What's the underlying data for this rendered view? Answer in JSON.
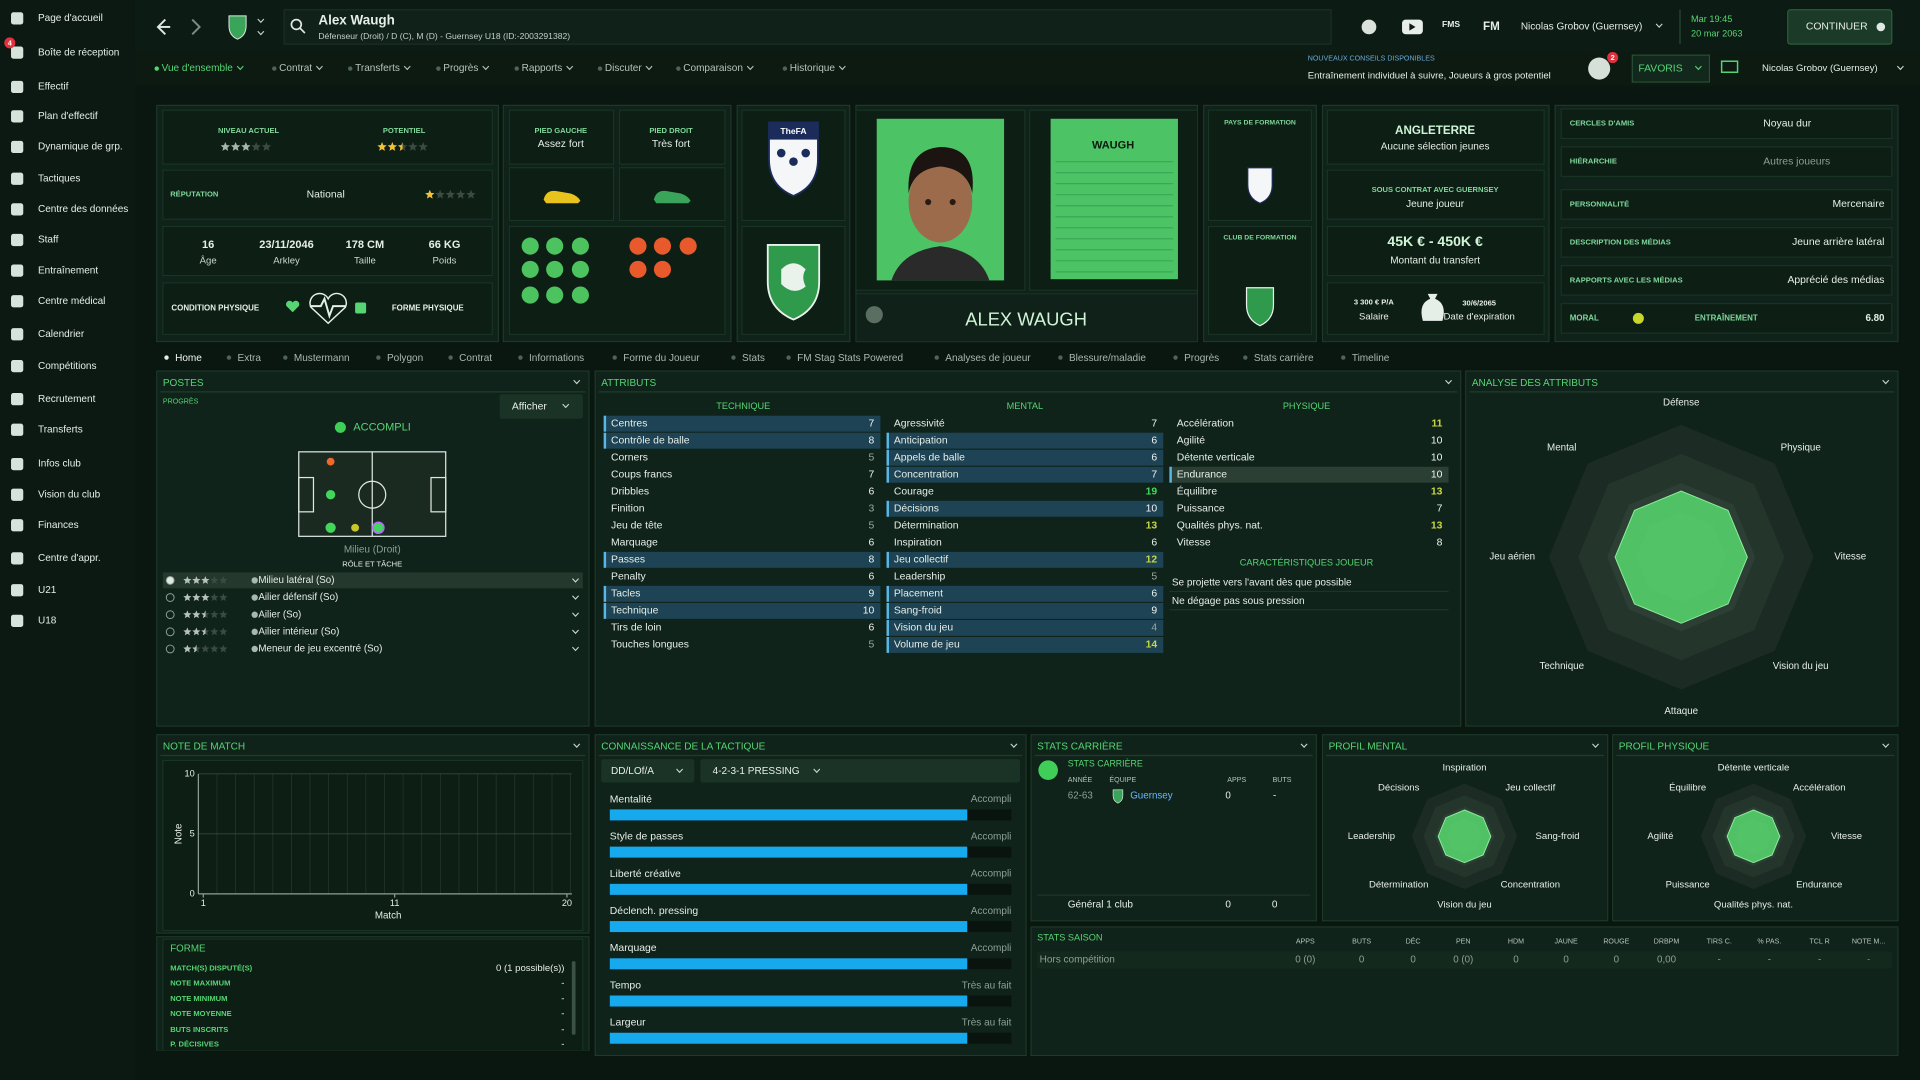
{
  "sidebar": {
    "badge": "4",
    "items": [
      "Page d'accueil",
      "Boîte de réception",
      "Effectif",
      "Plan d'effectif",
      "Dynamique de grp.",
      "Tactiques",
      "Centre des données",
      "Staff",
      "Entraînement",
      "Centre médical",
      "Calendrier",
      "Compétitions",
      "Recrutement",
      "Transferts",
      "Infos club",
      "Vision du club",
      "Finances",
      "Centre d'appr.",
      "U21",
      "U18"
    ]
  },
  "topbar": {
    "name": "Alex Waugh",
    "subtitle": "Défenseur (Droit) / D (C), M (D) - Guernsey U18 (ID:-2003291382)",
    "fms": "FMS",
    "fm": "FM",
    "manager": "Nicolas Grobov (Guernsey)",
    "time": "Mar 19:45",
    "date": "20 mar 2063",
    "continue": "CONTINUER"
  },
  "menu": [
    "Vue d'ensemble",
    "Contrat",
    "Transferts",
    "Progrès",
    "Rapports",
    "Discuter",
    "Comparaison",
    "Historique"
  ],
  "advice": {
    "title": "NOUVEAUX CONSEILS DISPONIBLES",
    "text": "Entraînement individuel à suivre, Joueurs à gros potentiel",
    "count": "2",
    "favorites": "FAVORIS",
    "manager": "Nicolas Grobov (Guernsey)"
  },
  "profile": {
    "current_ability": {
      "label": "NIVEAU ACTUEL",
      "stars": 3
    },
    "potential": {
      "label": "POTENTIEL",
      "stars": 2.5
    },
    "reputation": {
      "label": "RÉPUTATION",
      "value": "National",
      "stars": 1
    },
    "facts": [
      {
        "value": "16",
        "label": "Âge"
      },
      {
        "value": "23/11/2046",
        "label": "Arkley"
      },
      {
        "value": "178 CM",
        "label": "Taille"
      },
      {
        "value": "66 KG",
        "label": "Poids"
      }
    ],
    "condition": "CONDITION PHYSIQUE",
    "form": "FORME PHYSIQUE",
    "left_foot": {
      "label": "PIED GAUCHE",
      "value": "Assez fort"
    },
    "right_foot": {
      "label": "PIED DROIT",
      "value": "Très fort"
    },
    "nation_badge": "TheFA",
    "shirt_name": "WAUGH",
    "display_name": "ALEX WAUGH",
    "training_nation": "PAYS DE FORMATION",
    "training_club": "CLUB DE FORMATION",
    "nation": {
      "name": "ANGLETERRE",
      "caps": "Aucune sélection jeunes"
    },
    "contract": {
      "title": "SOUS CONTRAT AVEC GUERNSEY",
      "status": "Jeune joueur"
    },
    "value": {
      "amount": "45K € - 450K €",
      "label": "Montant du transfert"
    },
    "wage": {
      "amount": "3 300 € P/A",
      "label": "Salaire"
    },
    "expiry": {
      "date": "30/6/2065",
      "label": "Date d'expiration"
    },
    "info": [
      {
        "label": "CERCLES D'AMIS",
        "value": "Noyau dur"
      },
      {
        "label": "HIÉRARCHIE",
        "value": "Autres joueurs"
      },
      {
        "label": "PERSONNALITÉ",
        "value": "Mercenaire"
      },
      {
        "label": "DESCRIPTION DES MÉDIAS",
        "value": "Jeune arrière latéral"
      },
      {
        "label": "RAPPORTS AVEC LES MÉDIAS",
        "value": "Apprécié des médias"
      }
    ],
    "morale": "MORAL",
    "training": {
      "label": "ENTRAÎNEMENT",
      "value": "6.80"
    }
  },
  "tabs": [
    "Home",
    "Extra",
    "Mustermann",
    "Polygon",
    "Contrat",
    "Informations",
    "Forme du Joueur",
    "Stats",
    "FM Stag Stats Powered",
    "Analyses de joueur",
    "Blessure/maladie",
    "Progrès",
    "Stats carrière",
    "Timeline"
  ],
  "positions": {
    "title": "POSTES",
    "progress": "PROGRÈS",
    "show": "Afficher",
    "level": "ACCOMPLI",
    "position": "Milieu (Droit)",
    "role_title": "RÔLE ET TÂCHE",
    "roles": [
      {
        "name": "Milieu latéral (So)",
        "stars": 3
      },
      {
        "name": "Ailier défensif (So)",
        "stars": 3
      },
      {
        "name": "Ailier (So)",
        "stars": 2.5
      },
      {
        "name": "Ailier intérieur (So)",
        "stars": 2.5
      },
      {
        "name": "Meneur de jeu excentré (So)",
        "stars": 1.5
      }
    ]
  },
  "attributes": {
    "title": "ATTRIBUTS",
    "groups": [
      {
        "name": "TECHNIQUE",
        "rows": [
          {
            "name": "Centres",
            "value": 7,
            "key": true
          },
          {
            "name": "Contrôle de balle",
            "value": 8,
            "key": true
          },
          {
            "name": "Corners",
            "value": 5,
            "key": false
          },
          {
            "name": "Coups francs",
            "value": 7,
            "key": false
          },
          {
            "name": "Dribbles",
            "value": 6,
            "key": false
          },
          {
            "name": "Finition",
            "value": 3,
            "key": false
          },
          {
            "name": "Jeu de tête",
            "value": 5,
            "key": false
          },
          {
            "name": "Marquage",
            "value": 6,
            "key": false
          },
          {
            "name": "Passes",
            "value": 8,
            "key": true
          },
          {
            "name": "Penalty",
            "value": 6,
            "key": false
          },
          {
            "name": "Tacles",
            "value": 9,
            "key": true
          },
          {
            "name": "Technique",
            "value": 10,
            "key": true
          },
          {
            "name": "Tirs de loin",
            "value": 6,
            "key": false
          },
          {
            "name": "Touches longues",
            "value": 5,
            "key": false
          }
        ]
      },
      {
        "name": "MENTAL",
        "rows": [
          {
            "name": "Agressivité",
            "value": 7,
            "key": false
          },
          {
            "name": "Anticipation",
            "value": 6,
            "key": true
          },
          {
            "name": "Appels de balle",
            "value": 6,
            "key": true
          },
          {
            "name": "Concentration",
            "value": 7,
            "key": true
          },
          {
            "name": "Courage",
            "value": 19,
            "key": false
          },
          {
            "name": "Décisions",
            "value": 10,
            "key": true
          },
          {
            "name": "Détermination",
            "value": 13,
            "key": false
          },
          {
            "name": "Inspiration",
            "value": 6,
            "key": false
          },
          {
            "name": "Jeu collectif",
            "value": 12,
            "key": true
          },
          {
            "name": "Leadership",
            "value": 5,
            "key": false
          },
          {
            "name": "Placement",
            "value": 6,
            "key": true
          },
          {
            "name": "Sang-froid",
            "value": 9,
            "key": true
          },
          {
            "name": "Vision du jeu",
            "value": 4,
            "key": true
          },
          {
            "name": "Volume de jeu",
            "value": 14,
            "key": true
          }
        ]
      },
      {
        "name": "PHYSIQUE",
        "rows": [
          {
            "name": "Accélération",
            "value": 11,
            "key": false
          },
          {
            "name": "Agilité",
            "value": 10,
            "key": false
          },
          {
            "name": "Détente verticale",
            "value": 10,
            "key": false
          },
          {
            "name": "Endurance",
            "value": 10,
            "key": true
          },
          {
            "name": "Équilibre",
            "value": 13,
            "key": false
          },
          {
            "name": "Puissance",
            "value": 7,
            "key": false
          },
          {
            "name": "Qualités phys. nat.",
            "value": 13,
            "key": false
          },
          {
            "name": "Vitesse",
            "value": 8,
            "key": false
          }
        ]
      }
    ],
    "traits_title": "CARACTÉRISTIQUES JOUEUR",
    "traits": [
      "Se projette vers l'avant dès que possible",
      "Ne dégage pas sous pression"
    ]
  },
  "analysis": {
    "title": "ANALYSE DES ATTRIBUTS",
    "axes": [
      "Défense",
      "Physique",
      "Vitesse",
      "Vision du jeu",
      "Attaque",
      "Technique",
      "Jeu aérien",
      "Mental"
    ]
  },
  "match_rating": {
    "title": "NOTE DE MATCH",
    "y_label": "Note",
    "x_label": "Match",
    "ylim": [
      0,
      10
    ],
    "yticks": [
      0,
      5,
      10
    ],
    "xlim": [
      1,
      20
    ],
    "xticks": [
      1,
      11,
      20
    ]
  },
  "form": {
    "title": "FORME",
    "rows": [
      {
        "label": "MATCH(S) DISPUTÉ(S)",
        "value": "0 (1 possible(s))"
      },
      {
        "label": "NOTE MAXIMUM",
        "value": "-"
      },
      {
        "label": "NOTE MINIMUM",
        "value": "-"
      },
      {
        "label": "NOTE MOYENNE",
        "value": "-"
      },
      {
        "label": "BUTS INSCRITS",
        "value": "-"
      },
      {
        "label": "P. DÉCISIVES",
        "value": "-"
      }
    ]
  },
  "tactics": {
    "title": "CONNAISSANCE DE LA TACTIQUE",
    "role": "DD/LOf/A",
    "formation": "4-2-3-1 PRESSING",
    "rows": [
      {
        "label": "Mentalité",
        "level": "Accompli"
      },
      {
        "label": "Style de passes",
        "level": "Accompli"
      },
      {
        "label": "Liberté créative",
        "level": "Accompli"
      },
      {
        "label": "Déclench. pressing",
        "level": "Accompli"
      },
      {
        "label": "Marquage",
        "level": "Accompli"
      },
      {
        "label": "Tempo",
        "level": "Très au fait"
      },
      {
        "label": "Largeur",
        "level": "Très au fait"
      }
    ]
  },
  "career": {
    "title": "STATS CARRIÈRE",
    "link": "STATS CARRIÈRE",
    "headers": [
      "ANNÉE",
      "ÉQUIPE",
      "APPS",
      "BUTS"
    ],
    "rows": [
      [
        "62-63",
        "Guernsey",
        "0",
        "-"
      ]
    ],
    "total": [
      "Général 1 club",
      "0",
      "0"
    ]
  },
  "mental_profile": {
    "title": "PROFIL MENTAL",
    "axes": [
      "Inspiration",
      "Jeu collectif",
      "Sang-froid",
      "Concentration",
      "Vision du jeu",
      "Détermination",
      "Leadership",
      "Décisions"
    ]
  },
  "physical_profile": {
    "title": "PROFIL PHYSIQUE",
    "axes": [
      "Détente verticale",
      "Accélération",
      "Vitesse",
      "Endurance",
      "Qualités phys. nat.",
      "Puissance",
      "Agilité",
      "Équilibre"
    ]
  },
  "season": {
    "title": "STATS SAISON",
    "headers": [
      "APPS",
      "BUTS",
      "DÉC",
      "PEN",
      "HDM",
      "JAUNE",
      "ROUGE",
      "DRBPM",
      "TIRS C.",
      "% PAS.",
      "TCL R",
      "NOTE M..."
    ],
    "rows": [
      [
        "Hors compétition",
        "0 (0)",
        "0",
        "0",
        "0 (0)",
        "0",
        "0",
        "0",
        "0,00",
        "-",
        "-",
        "-",
        "-"
      ]
    ]
  }
}
